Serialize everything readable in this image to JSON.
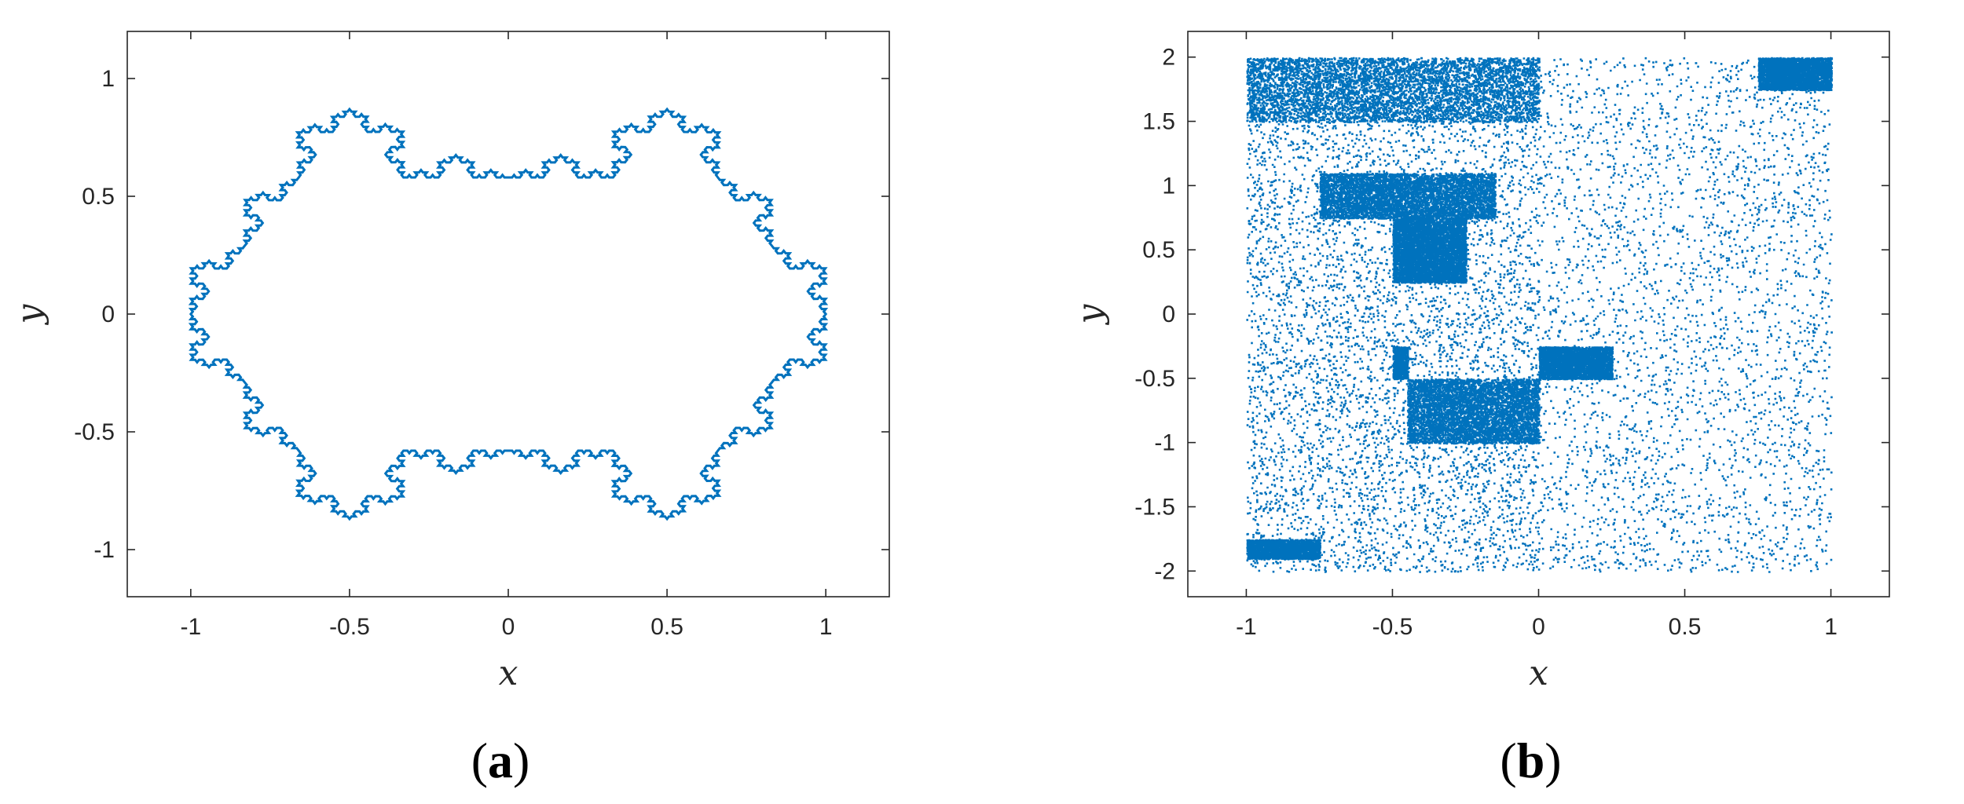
{
  "chart_data": [
    {
      "panel": "(a)",
      "panel_letter": "a",
      "type": "line",
      "description_kind": "koch-snowflake-like closed boundary curve",
      "xlabel": "x",
      "ylabel": "y",
      "xlim": [
        -1.2,
        1.2
      ],
      "ylim": [
        -1.2,
        1.2
      ],
      "xticks": [
        -1,
        -0.5,
        0,
        0.5,
        1
      ],
      "yticks": [
        -1,
        -0.5,
        0,
        0.5,
        1
      ],
      "xtick_labels": [
        "-1",
        "-0.5",
        "0",
        "0.5",
        "1"
      ],
      "ytick_labels": [
        "-1",
        "-0.5",
        "0",
        "0.5",
        "1"
      ],
      "grid": false,
      "series": [
        {
          "color": "#0072BD",
          "closed": true,
          "x": [
            1.0,
            0.83,
            0.66,
            0.5,
            0.33,
            0.0,
            -0.33,
            -0.5,
            -0.66,
            -0.83,
            -1.0,
            -0.83,
            -0.66,
            -0.5,
            -0.33,
            0.0,
            0.33,
            0.5,
            0.66,
            0.83
          ],
          "y": [
            0.0,
            0.29,
            0.58,
            0.87,
            0.58,
            0.58,
            0.58,
            0.87,
            0.58,
            0.29,
            0.0,
            -0.29,
            -0.58,
            -0.87,
            -0.58,
            -0.58,
            -0.58,
            -0.87,
            -0.58,
            -0.29
          ]
        }
      ]
    },
    {
      "panel": "(b)",
      "panel_letter": "b",
      "type": "scatter",
      "description_kind": "dense point cloud on [-1,1]x[-2,2]",
      "xlabel": "x",
      "ylabel": "y",
      "xlim": [
        -1.2,
        1.2
      ],
      "ylim": [
        -2.2,
        2.2
      ],
      "xticks": [
        -1,
        -0.5,
        0,
        0.5,
        1
      ],
      "yticks": [
        -2,
        -1.5,
        -1,
        -0.5,
        0,
        0.5,
        1,
        1.5,
        2
      ],
      "xtick_labels": [
        "-1",
        "-0.5",
        "0",
        "0.5",
        "1"
      ],
      "ytick_labels": [
        "-2",
        "-1.5",
        "-1",
        "-0.5",
        "0",
        "0.5",
        "1",
        "1.5",
        "2"
      ],
      "grid": false,
      "series": [
        {
          "color": "#0072BD",
          "x_range": [
            -1,
            1
          ],
          "y_range": [
            -2,
            2
          ],
          "dense_regions": [
            {
              "x": [
                -1.0,
                0.0
              ],
              "y": [
                1.5,
                2.0
              ]
            },
            {
              "x": [
                -0.75,
                -0.15
              ],
              "y": [
                0.75,
                1.1
              ]
            },
            {
              "x": [
                -0.5,
                -0.25
              ],
              "y": [
                0.25,
                0.75
              ]
            },
            {
              "x": [
                -0.5,
                -0.45
              ],
              "y": [
                -0.5,
                -0.25
              ]
            },
            {
              "x": [
                -0.45,
                0.0
              ],
              "y": [
                -1.0,
                -0.5
              ]
            },
            {
              "x": [
                -1.0,
                -0.75
              ],
              "y": [
                -1.9,
                -1.75
              ]
            },
            {
              "x": [
                0.0,
                0.25
              ],
              "y": [
                -0.5,
                -0.25
              ]
            },
            {
              "x": [
                0.75,
                1.0
              ],
              "y": [
                1.75,
                2.0
              ]
            }
          ]
        }
      ]
    }
  ]
}
